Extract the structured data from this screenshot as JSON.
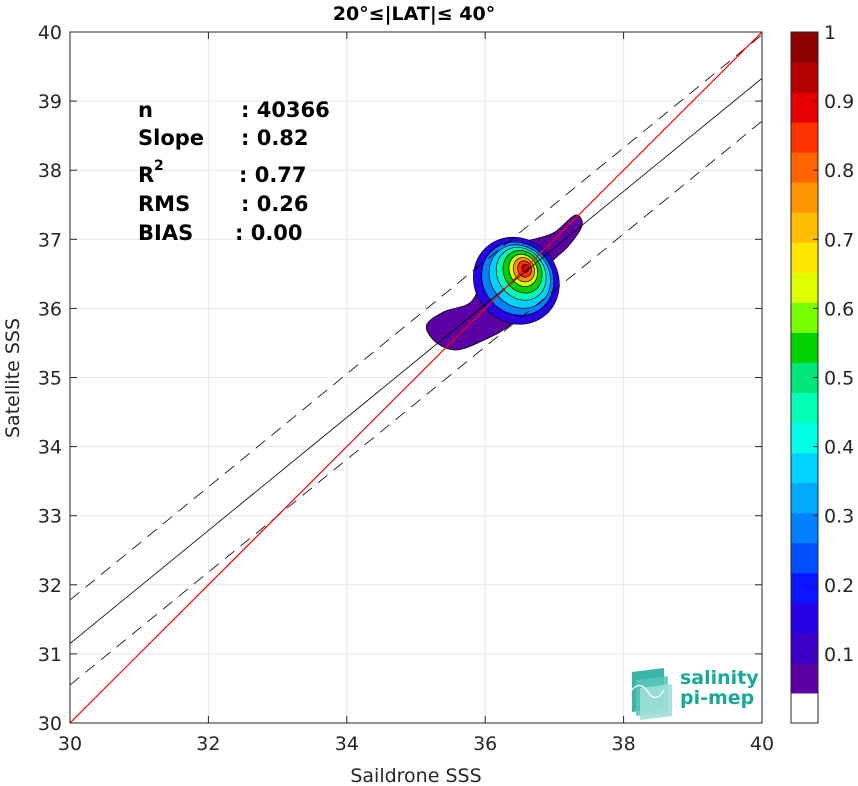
{
  "chart_data": {
    "type": "heatmap",
    "title": "20°≤|LAT|≤ 40°",
    "xlabel": "Saildrone SSS",
    "ylabel": "Satellite SSS",
    "xlim": [
      30,
      40
    ],
    "ylim": [
      30,
      40
    ],
    "x_ticks": [
      "30",
      "32",
      "34",
      "36",
      "38",
      "40"
    ],
    "y_ticks": [
      "30",
      "31",
      "32",
      "33",
      "34",
      "35",
      "36",
      "37",
      "38",
      "39",
      "40"
    ],
    "grid": true,
    "colorbar": {
      "range": [
        0,
        1
      ],
      "ticks": [
        "0.1",
        "0.2",
        "0.3",
        "0.4",
        "0.5",
        "0.6",
        "0.7",
        "0.8",
        "0.9",
        "1"
      ],
      "levels": 20,
      "colors": [
        "#ffffff",
        "#5a00a5",
        "#3d00c8",
        "#2800e6",
        "#0a14ff",
        "#0050ff",
        "#0082ff",
        "#00aaff",
        "#00d2ff",
        "#00ffe6",
        "#00ffb4",
        "#00e678",
        "#00d200",
        "#78ff00",
        "#ddff00",
        "#ffe600",
        "#ffbe00",
        "#ff9600",
        "#ff6400",
        "#ff3200",
        "#e60000",
        "#b40000",
        "#8c0000"
      ]
    },
    "stats": {
      "labels": [
        "n",
        "Slope",
        "R",
        "RMS",
        "BIAS"
      ],
      "sup": "2",
      "values": [
        ": 40366",
        ": 0.82",
        ": 0.77",
        ": 0.26",
        ": 0.00"
      ]
    },
    "lines": {
      "one_to_one": {
        "color": "#ff0000",
        "from": [
          30,
          30
        ],
        "to": [
          40,
          40
        ]
      },
      "fit": {
        "color": "#000000",
        "from": [
          30,
          31.15
        ],
        "to": [
          40,
          39.33
        ]
      },
      "upper_dashed": {
        "from": [
          30,
          31.78
        ],
        "to": [
          40,
          39.96
        ]
      },
      "lower_dashed": {
        "from": [
          30,
          30.55
        ],
        "to": [
          40,
          38.71
        ]
      }
    },
    "density": {
      "peak": [
        36.55,
        36.55
      ],
      "outer_contour": [
        [
          35.3,
          35.5
        ],
        [
          35.15,
          35.75
        ],
        [
          35.4,
          35.95
        ],
        [
          35.8,
          36.1
        ],
        [
          36.0,
          36.55
        ],
        [
          36.3,
          36.9
        ],
        [
          36.7,
          37.0
        ],
        [
          37.0,
          37.1
        ],
        [
          37.3,
          37.35
        ],
        [
          37.4,
          37.2
        ],
        [
          37.2,
          36.9
        ],
        [
          36.9,
          36.6
        ],
        [
          36.6,
          36.05
        ],
        [
          36.35,
          35.75
        ],
        [
          36.0,
          35.55
        ],
        [
          35.6,
          35.4
        ]
      ],
      "rings": [
        {
          "c": [
            36.45,
            36.4
          ],
          "rx": 0.6,
          "ry": 0.65,
          "rot": 40,
          "v": 0.15
        },
        {
          "c": [
            36.47,
            36.43
          ],
          "rx": 0.5,
          "ry": 0.55,
          "rot": 40,
          "v": 0.25
        },
        {
          "c": [
            36.5,
            36.46
          ],
          "rx": 0.42,
          "ry": 0.48,
          "rot": 38,
          "v": 0.35
        },
        {
          "c": [
            36.52,
            36.5
          ],
          "rx": 0.34,
          "ry": 0.4,
          "rot": 35,
          "v": 0.45
        },
        {
          "c": [
            36.54,
            36.53
          ],
          "rx": 0.27,
          "ry": 0.32,
          "rot": 30,
          "v": 0.55
        },
        {
          "c": [
            36.55,
            36.55
          ],
          "rx": 0.2,
          "ry": 0.24,
          "rot": 25,
          "v": 0.65
        },
        {
          "c": [
            36.56,
            36.56
          ],
          "rx": 0.15,
          "ry": 0.18,
          "rot": 20,
          "v": 0.75
        },
        {
          "c": [
            36.57,
            36.57
          ],
          "rx": 0.1,
          "ry": 0.12,
          "rot": 15,
          "v": 0.85
        },
        {
          "c": [
            36.58,
            36.58
          ],
          "rx": 0.05,
          "ry": 0.06,
          "rot": 10,
          "v": 0.95
        }
      ]
    }
  },
  "logo": {
    "line1": "salinity",
    "line2": "pi-mep",
    "icon": "wave-stack-icon"
  }
}
